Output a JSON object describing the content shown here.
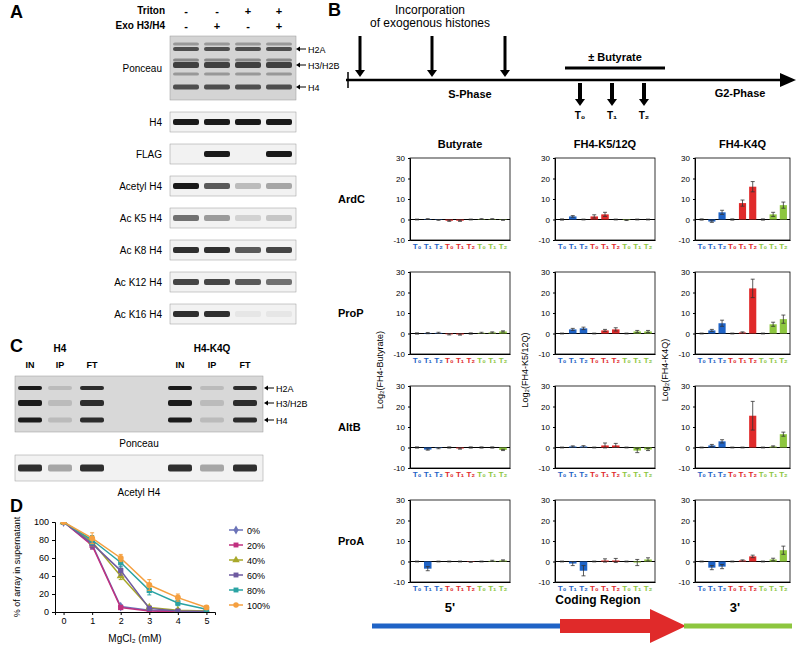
{
  "chart_data": [
    {
      "type": "bar",
      "categories": [
        "T₀",
        "T₁",
        "T₂",
        "T₀",
        "T₁",
        "T₂",
        "T₀",
        "T₁",
        "T₂"
      ],
      "values": [
        0,
        0.2,
        -0.2,
        -0.6,
        -0.6,
        0,
        0.2,
        0.2,
        -0.2
      ],
      "errors": [
        0.2,
        0.2,
        0.2,
        0.3,
        0.3,
        0.2,
        0.2,
        0.2,
        0.2
      ],
      "colors": [
        "#1f63c6",
        "#1f63c6",
        "#1f63c6",
        "#e02a2a",
        "#e02a2a",
        "#e02a2a",
        "#8dc63f",
        "#8dc63f",
        "#8dc63f"
      ],
      "ylim": [
        -10,
        30
      ],
      "yticks": [
        -10,
        0,
        10,
        20,
        30
      ]
    },
    {
      "type": "bar",
      "categories": [
        "T₀",
        "T₁",
        "T₂",
        "T₀",
        "T₁",
        "T₂",
        "T₀",
        "T₁",
        "T₂"
      ],
      "values": [
        0,
        1.5,
        0,
        1.5,
        2.5,
        0,
        -0.3,
        0,
        0
      ],
      "errors": [
        0.3,
        0.4,
        0.2,
        0.8,
        1,
        0.2,
        0.2,
        0.2,
        0.2
      ],
      "colors": [
        "#1f63c6",
        "#1f63c6",
        "#1f63c6",
        "#e02a2a",
        "#e02a2a",
        "#e02a2a",
        "#8dc63f",
        "#8dc63f",
        "#8dc63f"
      ],
      "ylim": [
        -10,
        30
      ],
      "yticks": [
        -10,
        0,
        10,
        20,
        30
      ]
    },
    {
      "type": "bar",
      "categories": [
        "T₀",
        "T₁",
        "T₂",
        "T₀",
        "T₁",
        "T₂",
        "T₀",
        "T₁",
        "T₂"
      ],
      "values": [
        0,
        -1,
        3.5,
        0,
        8,
        16,
        0,
        2.5,
        7
      ],
      "errors": [
        0.3,
        0.4,
        1,
        0.3,
        1.5,
        2.5,
        0.3,
        1,
        1.5
      ],
      "colors": [
        "#1f63c6",
        "#1f63c6",
        "#1f63c6",
        "#e02a2a",
        "#e02a2a",
        "#e02a2a",
        "#8dc63f",
        "#8dc63f",
        "#8dc63f"
      ],
      "ylim": [
        -10,
        30
      ],
      "yticks": [
        -10,
        0,
        10,
        20,
        30
      ]
    },
    {
      "type": "bar",
      "categories": [
        "T₀",
        "T₁",
        "T₂",
        "T₀",
        "T₁",
        "T₂",
        "T₀",
        "T₁",
        "T₂"
      ],
      "values": [
        0,
        0.2,
        0.3,
        -0.4,
        -0.5,
        0,
        0.3,
        0.5,
        1
      ],
      "errors": [
        0.3,
        0.3,
        0.3,
        0.3,
        0.3,
        0.3,
        0.3,
        0.3,
        0.3
      ],
      "colors": [
        "#1f63c6",
        "#1f63c6",
        "#1f63c6",
        "#e02a2a",
        "#e02a2a",
        "#e02a2a",
        "#8dc63f",
        "#8dc63f",
        "#8dc63f"
      ],
      "ylim": [
        -10,
        30
      ],
      "yticks": [
        -10,
        0,
        10,
        20,
        30
      ]
    },
    {
      "type": "bar",
      "categories": [
        "T₀",
        "T₁",
        "T₂",
        "T₀",
        "T₁",
        "T₂",
        "T₀",
        "T₁",
        "T₂"
      ],
      "values": [
        0,
        2,
        2.5,
        0,
        1.5,
        2,
        0,
        1,
        1
      ],
      "errors": [
        0.2,
        0.5,
        0.6,
        0.2,
        0.5,
        0.8,
        0.2,
        0.5,
        0.5
      ],
      "colors": [
        "#1f63c6",
        "#1f63c6",
        "#1f63c6",
        "#e02a2a",
        "#e02a2a",
        "#e02a2a",
        "#8dc63f",
        "#8dc63f",
        "#8dc63f"
      ],
      "ylim": [
        -10,
        30
      ],
      "yticks": [
        -10,
        0,
        10,
        20,
        30
      ]
    },
    {
      "type": "bar",
      "categories": [
        "T₀",
        "T₁",
        "T₂",
        "T₀",
        "T₁",
        "T₂",
        "T₀",
        "T₁",
        "T₂"
      ],
      "values": [
        0,
        1.5,
        5,
        0,
        0.5,
        22,
        0,
        4.5,
        7
      ],
      "errors": [
        0.2,
        0.5,
        1.5,
        0.2,
        0.3,
        4.5,
        0.2,
        1,
        2
      ],
      "colors": [
        "#1f63c6",
        "#1f63c6",
        "#1f63c6",
        "#e02a2a",
        "#e02a2a",
        "#e02a2a",
        "#8dc63f",
        "#8dc63f",
        "#8dc63f"
      ],
      "ylim": [
        -10,
        30
      ],
      "yticks": [
        -10,
        0,
        10,
        20,
        30
      ]
    },
    {
      "type": "bar",
      "categories": [
        "T₀",
        "T₁",
        "T₂",
        "T₀",
        "T₁",
        "T₂",
        "T₀",
        "T₁",
        "T₂"
      ],
      "values": [
        0,
        -1,
        -0.3,
        0,
        -0.5,
        0,
        0,
        0,
        -1.2
      ],
      "errors": [
        0.3,
        0.3,
        0.3,
        0.3,
        0.3,
        0.3,
        0.3,
        0.3,
        0.3
      ],
      "colors": [
        "#1f63c6",
        "#1f63c6",
        "#1f63c6",
        "#e02a2a",
        "#e02a2a",
        "#e02a2a",
        "#8dc63f",
        "#8dc63f",
        "#8dc63f"
      ],
      "ylim": [
        -10,
        30
      ],
      "yticks": [
        -10,
        0,
        10,
        20,
        30
      ]
    },
    {
      "type": "bar",
      "categories": [
        "T₀",
        "T₁",
        "T₂",
        "T₀",
        "T₁",
        "T₂",
        "T₀",
        "T₁",
        "T₂"
      ],
      "values": [
        0,
        0.5,
        0.5,
        0,
        1,
        1,
        0,
        -1.5,
        -1
      ],
      "errors": [
        0.2,
        0.3,
        0.4,
        0.2,
        1.2,
        1,
        0.2,
        1,
        0.5
      ],
      "colors": [
        "#1f63c6",
        "#1f63c6",
        "#1f63c6",
        "#e02a2a",
        "#e02a2a",
        "#e02a2a",
        "#8dc63f",
        "#8dc63f",
        "#8dc63f"
      ],
      "ylim": [
        -10,
        30
      ],
      "yticks": [
        -10,
        0,
        10,
        20,
        30
      ]
    },
    {
      "type": "bar",
      "categories": [
        "T₀",
        "T₁",
        "T₂",
        "T₀",
        "T₁",
        "T₂",
        "T₀",
        "T₁",
        "T₂"
      ],
      "values": [
        0,
        1,
        3,
        0,
        0,
        15.5,
        0,
        0.5,
        6.5
      ],
      "errors": [
        0.2,
        0.5,
        0.8,
        0.2,
        0.2,
        7,
        0.2,
        0.3,
        1
      ],
      "colors": [
        "#1f63c6",
        "#1f63c6",
        "#1f63c6",
        "#e02a2a",
        "#e02a2a",
        "#e02a2a",
        "#8dc63f",
        "#8dc63f",
        "#8dc63f"
      ],
      "ylim": [
        -10,
        30
      ],
      "yticks": [
        -10,
        0,
        10,
        20,
        30
      ]
    },
    {
      "type": "bar",
      "categories": [
        "T₀",
        "T₁",
        "T₂",
        "T₀",
        "T₁",
        "T₂",
        "T₀",
        "T₁",
        "T₂"
      ],
      "values": [
        0,
        -3.5,
        0,
        0,
        0,
        -0.2,
        0,
        0.3,
        0.5
      ],
      "errors": [
        0.2,
        1,
        0.2,
        0.2,
        0.2,
        0.2,
        0.2,
        0.3,
        0.3
      ],
      "colors": [
        "#1f63c6",
        "#1f63c6",
        "#1f63c6",
        "#e02a2a",
        "#e02a2a",
        "#e02a2a",
        "#8dc63f",
        "#8dc63f",
        "#8dc63f"
      ],
      "ylim": [
        -10,
        30
      ],
      "yticks": [
        -10,
        0,
        10,
        20,
        30
      ]
    },
    {
      "type": "bar",
      "categories": [
        "T₀",
        "T₁",
        "T₂",
        "T₀",
        "T₁",
        "T₂",
        "T₀",
        "T₁",
        "T₂"
      ],
      "values": [
        0,
        -1,
        -4.5,
        0,
        0.5,
        0.5,
        0,
        -0.5,
        1
      ],
      "errors": [
        0.2,
        1,
        2.5,
        0.2,
        0.8,
        1,
        0.2,
        1.5,
        0.8
      ],
      "colors": [
        "#1f63c6",
        "#1f63c6",
        "#1f63c6",
        "#e02a2a",
        "#e02a2a",
        "#e02a2a",
        "#8dc63f",
        "#8dc63f",
        "#8dc63f"
      ],
      "ylim": [
        -10,
        30
      ],
      "yticks": [
        -10,
        0,
        10,
        20,
        30
      ]
    },
    {
      "type": "bar",
      "categories": [
        "T₀",
        "T₁",
        "T₂",
        "T₀",
        "T₁",
        "T₂",
        "T₀",
        "T₁",
        "T₂"
      ],
      "values": [
        0,
        -3,
        -2.5,
        0,
        0.5,
        2.5,
        0,
        1,
        5.5
      ],
      "errors": [
        0.2,
        1,
        1,
        0.2,
        0.3,
        0.6,
        0.2,
        0.6,
        2
      ],
      "colors": [
        "#1f63c6",
        "#1f63c6",
        "#1f63c6",
        "#e02a2a",
        "#e02a2a",
        "#e02a2a",
        "#8dc63f",
        "#8dc63f",
        "#8dc63f"
      ],
      "ylim": [
        -10,
        30
      ],
      "yticks": [
        -10,
        0,
        10,
        20,
        30
      ]
    },
    {
      "type": "line",
      "x_label": "MgCl₂ (mM)",
      "y_label": "% of array in supernatant",
      "x": [
        0,
        1,
        2,
        3,
        4,
        5
      ],
      "xlim": [
        -0.3,
        5.3
      ],
      "xticks": [
        0,
        1,
        2,
        3,
        4,
        5
      ],
      "ylim": [
        0,
        100
      ],
      "yticks": [
        0,
        20,
        40,
        60,
        80,
        100
      ],
      "legend": "right",
      "series": [
        {
          "name": "0%",
          "color": "#6b73b8",
          "marker": "diamond",
          "values": [
            100,
            75,
            6,
            2,
            1,
            0.5
          ],
          "errors": [
            0,
            5,
            2,
            1,
            1,
            0.5
          ]
        },
        {
          "name": "20%",
          "color": "#c0307f",
          "marker": "square",
          "values": [
            100,
            74,
            5,
            1,
            0.5,
            0
          ],
          "errors": [
            0,
            4,
            2,
            1,
            0.5,
            0
          ]
        },
        {
          "name": "40%",
          "color": "#a8a82a",
          "marker": "triangle",
          "values": [
            100,
            78,
            40,
            5,
            2,
            1
          ],
          "errors": [
            0,
            5,
            4,
            2,
            1,
            1
          ]
        },
        {
          "name": "60%",
          "color": "#6e5aa0",
          "marker": "square",
          "values": [
            100,
            76,
            46,
            4,
            1,
            0.5
          ],
          "errors": [
            0,
            5,
            5,
            2,
            1,
            0.5
          ]
        },
        {
          "name": "80%",
          "color": "#2aa3a3",
          "marker": "square",
          "values": [
            100,
            80,
            55,
            24,
            10,
            3
          ],
          "errors": [
            0,
            5,
            5,
            5,
            3,
            2
          ]
        },
        {
          "name": "100%",
          "color": "#f5a040",
          "marker": "circle",
          "values": [
            100,
            82,
            60,
            30,
            16,
            5
          ],
          "errors": [
            0,
            6,
            4,
            6,
            4,
            2
          ]
        }
      ]
    }
  ],
  "figure": {
    "panel_a": {
      "letter": "A",
      "conditions": [
        {
          "label": "Triton",
          "signs": [
            "-",
            "-",
            "+",
            "+"
          ]
        },
        {
          "label": "Exo H3/H4",
          "signs": [
            "-",
            "+",
            "-",
            "+"
          ]
        }
      ],
      "blots": [
        "Ponceau",
        "H4",
        "FLAG",
        "Acetyl H4",
        "Ac K5 H4",
        "Ac K8 H4",
        "Ac K12 H4",
        "Ac K16 H4"
      ],
      "bands": [
        "H2A",
        "H3/H2B",
        "H4"
      ]
    },
    "panel_b": {
      "letter": "B",
      "incorporation": [
        "Incorporation",
        "of exogenous histones"
      ],
      "treatment": "± Butyrate",
      "phases": [
        "S-Phase",
        "G2-Phase"
      ],
      "timepoints": [
        "T₀",
        "T₁",
        "T₂"
      ],
      "columns": [
        "Butyrate",
        "FH4-K5/12Q",
        "FH4-K4Q"
      ],
      "y_labels": [
        "Log₂(FH4-Butyrate)",
        "Log₂(FH4-K5/12Q)",
        "Log₂(FH4-K4Q)"
      ],
      "rows": [
        "ArdC",
        "ProP",
        "AltB",
        "ProA"
      ],
      "regions": [
        "5'",
        "Coding Region",
        "3'"
      ]
    },
    "panel_c": {
      "letter": "C",
      "groups": [
        {
          "label": "H4",
          "lanes": [
            "IN",
            "IP",
            "FT"
          ]
        },
        {
          "label": "H4-K4Q",
          "lanes": [
            "IN",
            "IP",
            "FT"
          ]
        }
      ],
      "blots": [
        "Ponceau",
        "Acetyl H4"
      ],
      "bands": [
        "H2A",
        "H3/H2B",
        "H4"
      ]
    },
    "panel_d": {
      "letter": "D"
    }
  }
}
